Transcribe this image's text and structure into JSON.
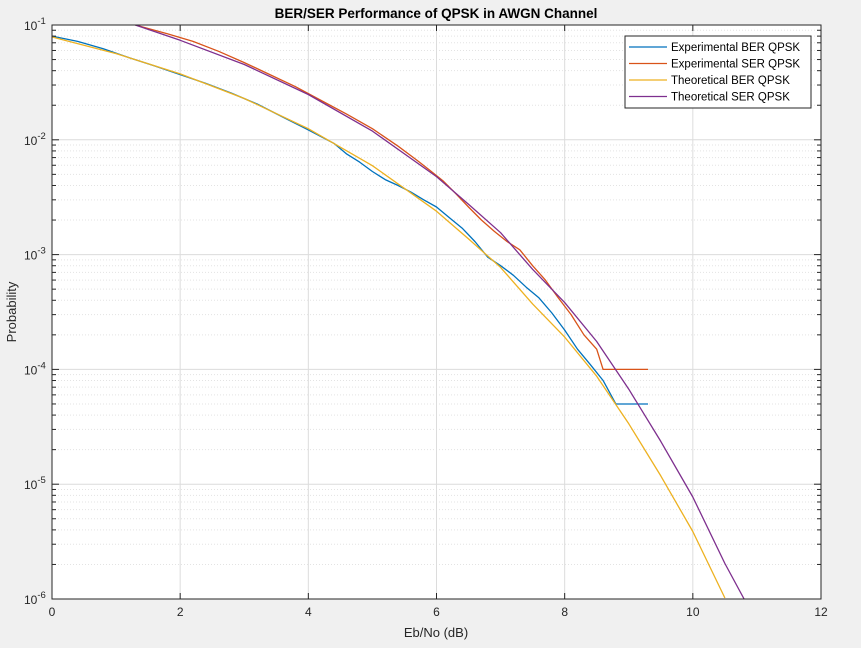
{
  "chart_data": {
    "type": "line",
    "title": "BER/SER Performance of QPSK in AWGN Channel",
    "xlabel": "Eb/No (dB)",
    "ylabel": "Probability",
    "xlim": [
      0,
      12
    ],
    "ylim": [
      1e-06,
      0.1
    ],
    "yscale": "log",
    "grid": true,
    "minor_grid": true,
    "legend_position": "top-right",
    "x_ticks": [
      0,
      2,
      4,
      6,
      8,
      10,
      12
    ],
    "x_tick_labels": [
      "0",
      "2",
      "4",
      "6",
      "8",
      "10",
      "12"
    ],
    "y_ticks": [
      {
        "value": 1e-06,
        "base": "10",
        "exp": "-6"
      },
      {
        "value": 1e-05,
        "base": "10",
        "exp": "-5"
      },
      {
        "value": 0.0001,
        "base": "10",
        "exp": "-4"
      },
      {
        "value": 0.001,
        "base": "10",
        "exp": "-3"
      },
      {
        "value": 0.01,
        "base": "10",
        "exp": "-2"
      },
      {
        "value": 0.1,
        "base": "10",
        "exp": "-1"
      }
    ],
    "series": [
      {
        "name": "Experimental BER QPSK",
        "color": "#0072BD",
        "x": [
          0,
          0.4,
          0.8,
          1.2,
          1.6,
          2.0,
          2.4,
          2.8,
          3.2,
          3.6,
          4.0,
          4.4,
          4.6,
          4.8,
          5.0,
          5.2,
          5.4,
          5.6,
          5.8,
          6.0,
          6.2,
          6.4,
          6.6,
          6.8,
          7.0,
          7.2,
          7.4,
          7.6,
          7.8,
          8.0,
          8.2,
          8.4,
          8.6,
          8.8,
          9.0,
          9.3
        ],
        "y": [
          0.08,
          0.072,
          0.062,
          0.052,
          0.044,
          0.037,
          0.031,
          0.0255,
          0.0205,
          0.0158,
          0.0122,
          0.0093,
          0.0075,
          0.0064,
          0.0053,
          0.0045,
          0.004,
          0.0035,
          0.003,
          0.0026,
          0.0021,
          0.0017,
          0.0013,
          0.00095,
          0.0008,
          0.00066,
          0.00052,
          0.00042,
          0.00031,
          0.00022,
          0.00015,
          0.00011,
          8e-05,
          5e-05,
          5e-05,
          5e-05
        ]
      },
      {
        "name": "Experimental SER QPSK",
        "color": "#D95319",
        "x": [
          1.3,
          1.8,
          2.2,
          2.6,
          3.0,
          3.4,
          3.8,
          4.2,
          4.6,
          5.0,
          5.4,
          5.7,
          5.9,
          6.1,
          6.3,
          6.5,
          6.7,
          6.9,
          7.1,
          7.3,
          7.5,
          7.7,
          7.9,
          8.1,
          8.3,
          8.5,
          8.6,
          8.8,
          9.3
        ],
        "y": [
          0.1,
          0.084,
          0.072,
          0.059,
          0.047,
          0.037,
          0.029,
          0.022,
          0.0167,
          0.0125,
          0.0088,
          0.0066,
          0.0054,
          0.0044,
          0.0034,
          0.0026,
          0.002,
          0.0016,
          0.0013,
          0.0011,
          0.0008,
          0.0006,
          0.00042,
          0.0003,
          0.0002,
          0.00015,
          0.0001,
          0.0001,
          0.0001
        ]
      },
      {
        "name": "Theoretical BER QPSK",
        "color": "#EDB120",
        "x": [
          0,
          1,
          2,
          3,
          4,
          5,
          6,
          6.5,
          7,
          7.5,
          8,
          8.5,
          9,
          9.5,
          10,
          10.5
        ],
        "y": [
          0.0786,
          0.0563,
          0.0375,
          0.0229,
          0.0125,
          0.00595,
          0.00239,
          0.00137,
          0.000773,
          0.000372,
          0.000191,
          8.73e-05,
          3.36e-05,
          1.18e-05,
          3.87e-06,
          1.02e-06
        ]
      },
      {
        "name": "Theoretical SER QPSK",
        "color": "#7E2F8E",
        "x": [
          1.3,
          2,
          3,
          4,
          5,
          6,
          6.5,
          7,
          7.5,
          8,
          8.5,
          9,
          9.5,
          10,
          10.5,
          10.8
        ],
        "y": [
          0.1,
          0.0736,
          0.0453,
          0.0248,
          0.0119,
          0.00478,
          0.00274,
          0.00155,
          0.000744,
          0.000382,
          0.000175,
          6.72e-05,
          2.36e-05,
          7.74e-06,
          2.04e-06,
          1e-06
        ]
      }
    ]
  }
}
